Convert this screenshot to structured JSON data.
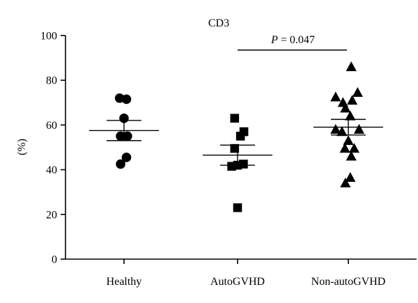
{
  "chart_data": {
    "type": "scatter",
    "title": "CD3",
    "ylabel": "(%)",
    "xlabel": "",
    "ylim": [
      0,
      100
    ],
    "yticks": [
      0,
      20,
      40,
      60,
      80,
      100
    ],
    "categories": [
      "Healthy",
      "AutoGVHD",
      "Non-autoGVHD"
    ],
    "grid": false,
    "series": [
      {
        "category": "Healthy",
        "marker": "circle",
        "values": [
          72,
          71.5,
          63,
          55,
          55,
          42.5,
          45.5
        ],
        "jitter": [
          -0.45,
          0.25,
          0.0,
          -0.35,
          0.35,
          -0.35,
          0.25
        ],
        "mean": 57.5,
        "sem_upper": 62,
        "sem_lower": 53
      },
      {
        "category": "AutoGVHD",
        "marker": "square",
        "values": [
          63,
          57,
          55,
          49.5,
          42.5,
          42,
          41.5,
          23
        ],
        "jitter": [
          -0.3,
          0.65,
          0.3,
          -0.3,
          0.6,
          0.0,
          -0.6,
          0.0
        ],
        "mean": 46.5,
        "sem_upper": 51,
        "sem_lower": 42
      },
      {
        "category": "Non-autoGVHD",
        "marker": "triangle",
        "values": [
          86,
          74.5,
          72.5,
          71,
          70,
          67.5,
          64,
          58,
          58,
          57,
          53,
          49.5,
          49.5,
          46,
          36.5,
          34
        ],
        "jitter": [
          0.3,
          0.95,
          -1.3,
          0.4,
          -0.55,
          -0.3,
          0.2,
          -1.3,
          1.1,
          -0.65,
          0.0,
          -0.35,
          0.6,
          0.3,
          0.2,
          -0.3
        ],
        "mean": 59,
        "sem_upper": 62.5,
        "sem_lower": 55.5
      }
    ],
    "annotations": [
      {
        "text": "P = 0.047",
        "from": "AutoGVHD",
        "to": "Non-autoGVHD",
        "y": 93.5
      }
    ]
  }
}
